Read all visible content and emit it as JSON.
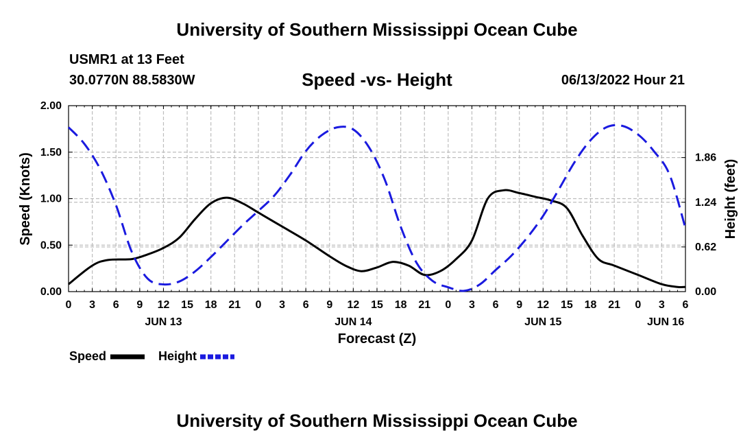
{
  "header": {
    "title": "University of Southern Mississippi Ocean Cube",
    "station": "USMR1 at 13 Feet",
    "coordinates": "30.0770N  88.5830W",
    "subtitle": "Speed -vs- Height",
    "datetime": "06/13/2022 Hour 21"
  },
  "footer": {
    "title": "University of Southern Mississippi Ocean Cube"
  },
  "legend": {
    "speed_label": "Speed",
    "height_label": "Height"
  },
  "colors": {
    "speed": "#000000",
    "height": "#1a1adf",
    "grid": "#bdbdbd"
  },
  "chart_data": {
    "type": "line",
    "title": "Speed -vs- Height",
    "xlabel": "Forecast (Z)",
    "ylabel": "Speed (Knots)",
    "y2label": "Height (feet)",
    "x_unit": "hours since JUN 13 00Z",
    "xlim": [
      0,
      78
    ],
    "ylim": [
      0,
      2.0
    ],
    "y2lim": [
      0,
      2.58
    ],
    "x_tick_positions": [
      0,
      3,
      6,
      9,
      12,
      15,
      18,
      21,
      24,
      27,
      30,
      33,
      36,
      39,
      42,
      45,
      48,
      51,
      54,
      57,
      60,
      63,
      66,
      69,
      72,
      75,
      78
    ],
    "x_tick_labels": [
      "0",
      "3",
      "6",
      "9",
      "12",
      "15",
      "18",
      "21",
      "0",
      "3",
      "6",
      "9",
      "12",
      "15",
      "18",
      "21",
      "0",
      "3",
      "6",
      "9",
      "12",
      "15",
      "18",
      "21",
      "0",
      "3",
      "6"
    ],
    "date_labels": [
      {
        "label": "JUN 13",
        "x": 12
      },
      {
        "label": "JUN 14",
        "x": 36
      },
      {
        "label": "JUN 15",
        "x": 60
      },
      {
        "label": "JUN 16",
        "x": 75.5
      }
    ],
    "y_ticks": [
      0.0,
      0.5,
      1.0,
      1.5,
      2.0
    ],
    "y_tick_labels": [
      "0.00",
      "0.50",
      "1.00",
      "1.50",
      "2.00"
    ],
    "y2_ticks": [
      0.0,
      0.62,
      1.24,
      1.86
    ],
    "y2_tick_labels": [
      "0.00",
      "0.62",
      "1.24",
      "1.86"
    ],
    "series": [
      {
        "name": "Speed",
        "axis": "left",
        "style": "solid",
        "x": [
          0,
          3,
          5,
          8,
          10,
          12,
          14,
          16,
          18,
          20,
          22,
          24,
          27,
          30,
          33,
          35,
          37,
          39,
          41,
          43,
          45,
          47,
          49,
          51,
          53,
          55,
          57,
          59,
          61,
          63,
          65,
          67,
          69,
          72,
          75,
          77,
          78
        ],
        "values": [
          0.08,
          0.28,
          0.34,
          0.35,
          0.4,
          0.47,
          0.58,
          0.78,
          0.95,
          1.01,
          0.95,
          0.85,
          0.7,
          0.55,
          0.38,
          0.28,
          0.22,
          0.26,
          0.32,
          0.28,
          0.18,
          0.22,
          0.35,
          0.55,
          1.0,
          1.09,
          1.06,
          1.02,
          0.98,
          0.9,
          0.6,
          0.35,
          0.28,
          0.18,
          0.08,
          0.05,
          0.05
        ]
      },
      {
        "name": "Height",
        "axis": "right",
        "style": "dashed",
        "x": [
          0,
          2,
          4,
          6,
          8,
          10,
          12,
          14,
          16,
          18,
          20,
          22,
          24,
          26,
          28,
          30,
          32,
          34,
          36,
          38,
          40,
          42,
          44,
          46,
          48,
          50,
          52,
          54,
          56,
          58,
          60,
          62,
          64,
          66,
          68,
          70,
          72,
          74,
          76,
          78
        ],
        "values": [
          2.28,
          2.05,
          1.7,
          1.2,
          0.55,
          0.18,
          0.1,
          0.14,
          0.28,
          0.48,
          0.7,
          0.92,
          1.12,
          1.33,
          1.62,
          1.95,
          2.17,
          2.28,
          2.25,
          2.0,
          1.55,
          0.9,
          0.4,
          0.15,
          0.06,
          0.01,
          0.1,
          0.3,
          0.5,
          0.75,
          1.05,
          1.42,
          1.8,
          2.1,
          2.28,
          2.3,
          2.18,
          1.95,
          1.62,
          0.88
        ]
      }
    ]
  }
}
